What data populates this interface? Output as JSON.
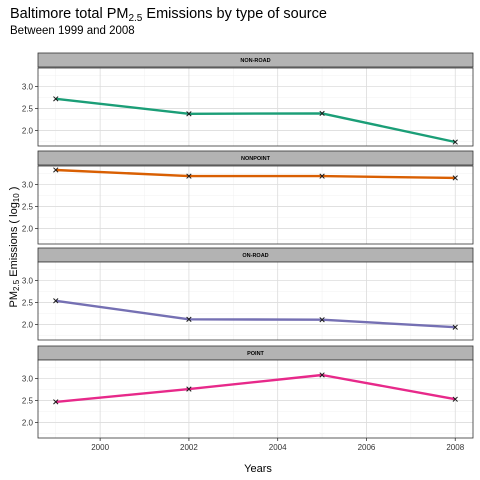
{
  "chart_data": {
    "type": "line",
    "title": {
      "prefix": "Baltimore total PM",
      "sub": "2.5",
      "suffix": " Emissions by type of source"
    },
    "subtitle": "Between 1999 and 2008",
    "xlabel": "Years",
    "ylabel": {
      "prefix": "PM",
      "sub": "2.5",
      "mid": " Emissions ( log",
      "sub2": "10",
      "suffix": " )"
    },
    "x": [
      1999,
      2002,
      2005,
      2008
    ],
    "xlim": [
      1998.6,
      2008.4
    ],
    "xticks": [
      2000,
      2002,
      2004,
      2006,
      2008
    ],
    "ylim": [
      1.65,
      3.42
    ],
    "yticks": [
      2.0,
      2.5,
      3.0
    ],
    "ytick_labels": [
      "2.0",
      "2.5",
      "3.0"
    ],
    "facets": [
      {
        "label": "NON-ROAD",
        "color": "#1b9e77",
        "values": [
          2.72,
          2.38,
          2.39,
          1.74
        ]
      },
      {
        "label": "NONPOINT",
        "color": "#d95f02",
        "values": [
          3.33,
          3.19,
          3.19,
          3.15
        ]
      },
      {
        "label": "ON-ROAD",
        "color": "#7570b3",
        "values": [
          2.54,
          2.12,
          2.11,
          1.94
        ]
      },
      {
        "label": "POINT",
        "color": "#e7298a",
        "values": [
          2.47,
          2.76,
          3.08,
          2.53
        ]
      }
    ],
    "marker": "x",
    "grid": true
  }
}
